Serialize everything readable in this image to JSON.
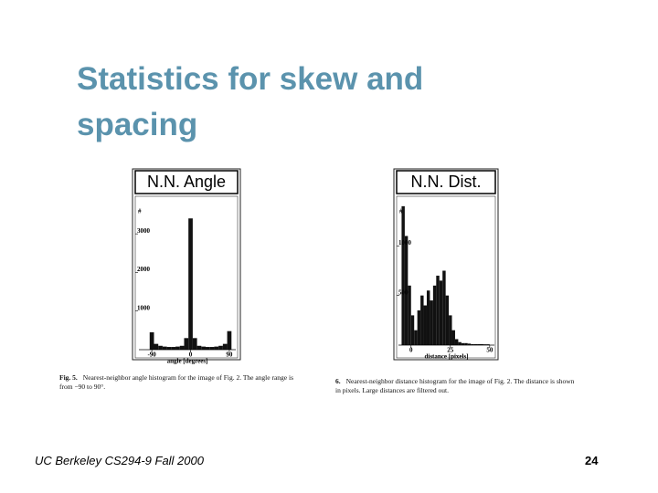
{
  "title": "Statistics for skew and spacing",
  "figures": [
    {
      "header": "N.N. Angle",
      "y_label": "#",
      "x_label": "angle [degrees]",
      "caption_number": "Fig. 5.",
      "caption": "Nearest-neighbor angle histogram for the image of Fig. 2. The angle range is from −90 to 90°.",
      "xlim": [
        -120,
        105
      ],
      "ylim": [
        0,
        3500
      ],
      "xticks": [
        -90,
        0,
        90
      ],
      "yticks": [
        1000,
        2000,
        3000
      ],
      "bins": [
        -95,
        -85,
        -75,
        -65,
        -55,
        -45,
        -35,
        -25,
        -15,
        -5,
        5,
        15,
        25,
        35,
        45,
        55,
        65,
        75,
        85,
        95
      ],
      "counts": [
        450,
        150,
        100,
        80,
        70,
        70,
        80,
        100,
        300,
        3400,
        300,
        100,
        80,
        70,
        70,
        80,
        100,
        150,
        480
      ]
    },
    {
      "header": "N.N. Dist.",
      "y_label": "#",
      "x_label": "distance [pixels]",
      "caption_number": "6.",
      "caption": "Nearest-neighbor distance histogram for the image of Fig. 2. The distance is shown in pixels. Large distances are filtered out.",
      "xlim": [
        -8,
        53
      ],
      "ylim": [
        0,
        1500
      ],
      "xticks": [
        0,
        25,
        50
      ],
      "yticks": [
        500,
        1000
      ],
      "bins": [
        -6,
        -4,
        -2,
        0,
        2,
        4,
        6,
        8,
        10,
        12,
        14,
        16,
        18,
        20,
        22,
        24,
        26,
        28,
        30,
        32,
        34,
        36,
        38,
        40,
        42,
        44,
        46,
        48,
        50
      ],
      "counts": [
        1400,
        1100,
        600,
        300,
        150,
        350,
        500,
        400,
        550,
        450,
        600,
        700,
        650,
        750,
        500,
        300,
        150,
        60,
        30,
        20,
        20,
        15,
        10,
        10,
        10,
        10,
        8,
        8
      ]
    }
  ],
  "footer": {
    "left": "UC Berkeley CS294-9 Fall 2000",
    "page": "24"
  }
}
